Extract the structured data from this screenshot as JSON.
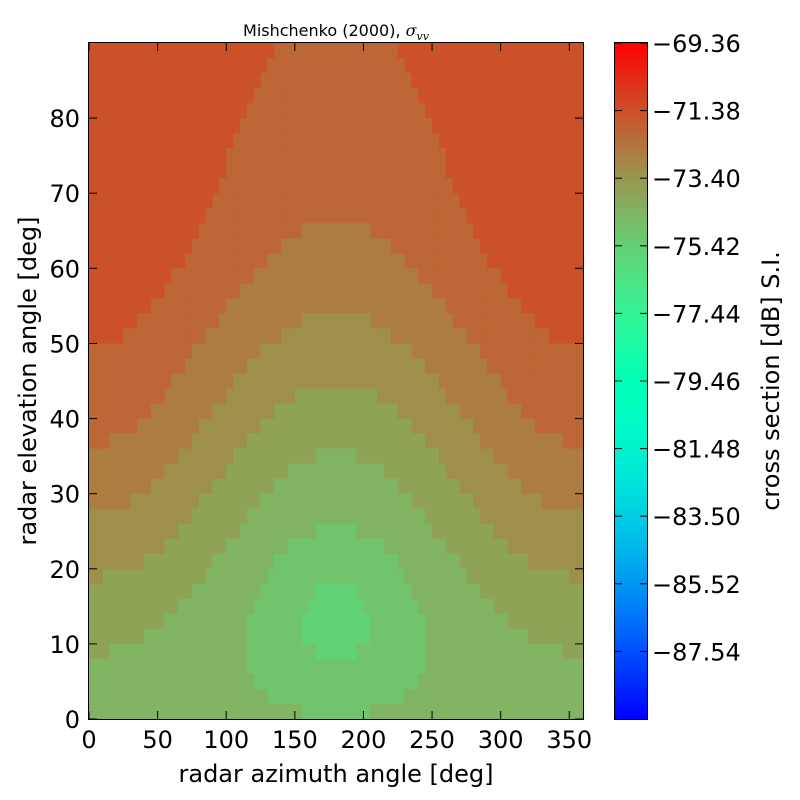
{
  "chart_data": {
    "type": "heatmap",
    "title": "Mishchenko (2000), ",
    "title_symbol": "σ",
    "title_subscript": "vv",
    "xlabel": "radar azimuth angle [deg]",
    "ylabel": "radar elevation angle [deg]",
    "xlim": [
      0,
      360
    ],
    "ylim": [
      0,
      90
    ],
    "x_ticks": [
      0,
      50,
      100,
      150,
      200,
      250,
      300,
      350
    ],
    "y_ticks": [
      0,
      10,
      20,
      30,
      40,
      50,
      60,
      70,
      80
    ],
    "colorbar": {
      "label": "cross section [dB] S.I.",
      "min": -89.56,
      "max": -69.36,
      "ticks": [
        "−69.36",
        "−71.38",
        "−73.40",
        "−75.42",
        "−77.44",
        "−79.46",
        "−81.48",
        "−83.50",
        "−85.52",
        "−87.54"
      ],
      "tick_values": [
        -69.36,
        -71.38,
        -73.4,
        -75.42,
        -77.44,
        -79.46,
        -81.48,
        -83.5,
        -85.52,
        -87.54
      ],
      "colormap": "rainbow"
    },
    "grid": false,
    "summary_points": [
      {
        "azimuth": 0,
        "elevation": 90,
        "value": -71.2
      },
      {
        "azimuth": 0,
        "elevation": 65,
        "value": -71.0
      },
      {
        "azimuth": 0,
        "elevation": 30,
        "value": -72.9
      },
      {
        "azimuth": 0,
        "elevation": 0,
        "value": -74.3
      },
      {
        "azimuth": 180,
        "elevation": 90,
        "value": -71.7
      },
      {
        "azimuth": 180,
        "elevation": 50,
        "value": -73.6
      },
      {
        "azimuth": 180,
        "elevation": 30,
        "value": -74.5
      },
      {
        "azimuth": 180,
        "elevation": 13,
        "value": -75.0
      },
      {
        "azimuth": 180,
        "elevation": 0,
        "value": -74.6
      },
      {
        "azimuth": 360,
        "elevation": 65,
        "value": -71.0
      },
      {
        "azimuth": 360,
        "elevation": 0,
        "value": -74.3
      }
    ]
  }
}
